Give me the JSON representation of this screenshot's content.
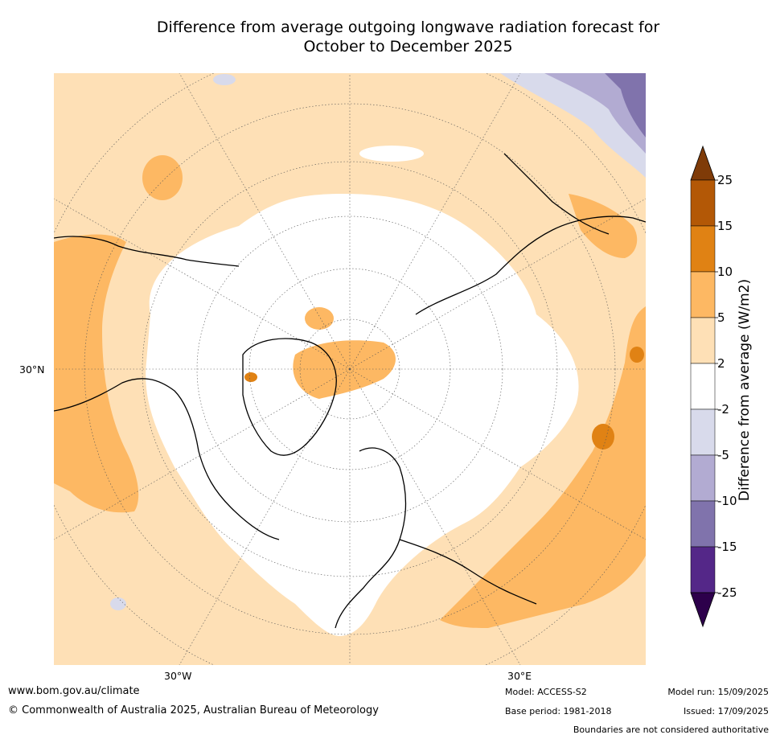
{
  "title": {
    "line1": "Difference from average outgoing longwave radiation forecast for",
    "line2": "October to December 2025"
  },
  "map": {
    "projection": "north-polar-stereographic",
    "graticule_labels": {
      "lat_30n": "30°N",
      "lon_30w": "30°W",
      "lon_30e": "30°E"
    }
  },
  "colorbar": {
    "title": "Difference from average (W/m2)",
    "ticks": [
      "25",
      "15",
      "10",
      "5",
      "2",
      "-2",
      "-5",
      "-10",
      "-15",
      "-25"
    ],
    "bins": [
      {
        "range": "> 25",
        "color": "#7f3b08"
      },
      {
        "range": "15 to 25",
        "color": "#b35806"
      },
      {
        "range": "10 to 15",
        "color": "#e08214"
      },
      {
        "range": "5 to 10",
        "color": "#fdb863"
      },
      {
        "range": "2 to 5",
        "color": "#fee0b6"
      },
      {
        "range": "-2 to 2",
        "color": "#ffffff"
      },
      {
        "range": "-5 to -2",
        "color": "#d8daeb"
      },
      {
        "range": "-10 to -5",
        "color": "#b2abd2"
      },
      {
        "range": "-15 to -10",
        "color": "#8073ac"
      },
      {
        "range": "-25 to -15",
        "color": "#542788"
      },
      {
        "range": "< -25",
        "color": "#2d004b"
      }
    ]
  },
  "footer": {
    "website": "www.bom.gov.au/climate",
    "copyright": "© Commonwealth of Australia 2025, Australian Bureau of Meteorology",
    "model": "Model: ACCESS-S2",
    "base_period": "Base period: 1981-2018",
    "model_run": "Model run: 15/09/2025",
    "issued": "Issued: 17/09/2025",
    "disclaimer": "Boundaries are not considered authoritative"
  }
}
